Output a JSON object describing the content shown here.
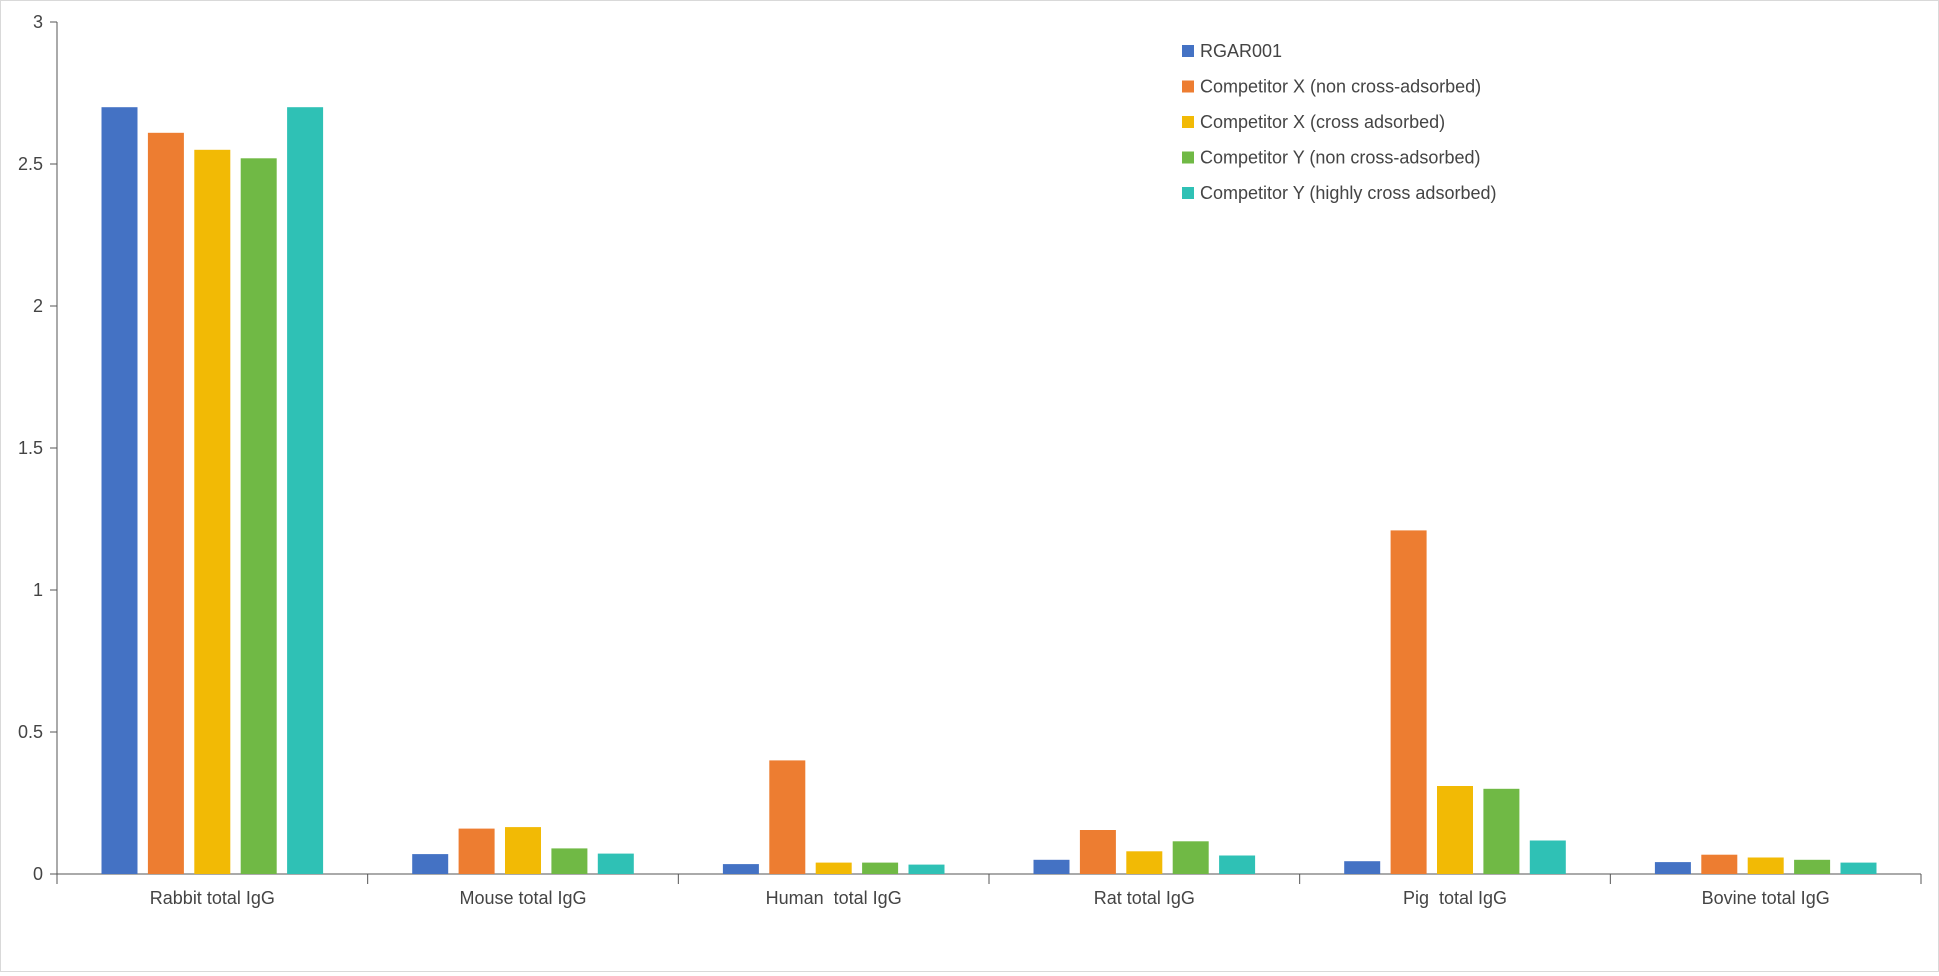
{
  "chart_data": {
    "type": "bar",
    "categories": [
      "Rabbit total IgG",
      "Mouse total IgG",
      "Human  total IgG",
      "Rat total IgG",
      "Pig  total IgG",
      "Bovine total IgG"
    ],
    "series": [
      {
        "name": "RGAR001",
        "color": "#4472C4",
        "values": [
          2.7,
          0.07,
          0.035,
          0.05,
          0.045,
          0.042
        ]
      },
      {
        "name": "Competitor X (non cross-adsorbed)",
        "color": "#ED7D31",
        "values": [
          2.61,
          0.16,
          0.4,
          0.155,
          1.21,
          0.068
        ]
      },
      {
        "name": "Competitor X (cross adsorbed)",
        "color": "#F2BA05",
        "values": [
          2.55,
          0.165,
          0.04,
          0.08,
          0.31,
          0.058
        ]
      },
      {
        "name": "Competitor Y (non cross-adsorbed)",
        "color": "#70B945",
        "values": [
          2.52,
          0.09,
          0.04,
          0.115,
          0.3,
          0.05
        ]
      },
      {
        "name": "Competitor Y (highly cross adsorbed)",
        "color": "#2FC1B5",
        "values": [
          2.7,
          0.072,
          0.033,
          0.065,
          0.118,
          0.04
        ]
      }
    ],
    "ylim": [
      0,
      3
    ],
    "yticks": [
      0,
      0.5,
      1,
      1.5,
      2,
      2.5,
      3
    ],
    "ytick_labels": [
      "0",
      "0.5",
      "1",
      "1.5",
      "2",
      "2.5",
      "3"
    ],
    "title": "",
    "xlabel": "",
    "ylabel": "",
    "grid": false,
    "legend_position": "top-right"
  }
}
